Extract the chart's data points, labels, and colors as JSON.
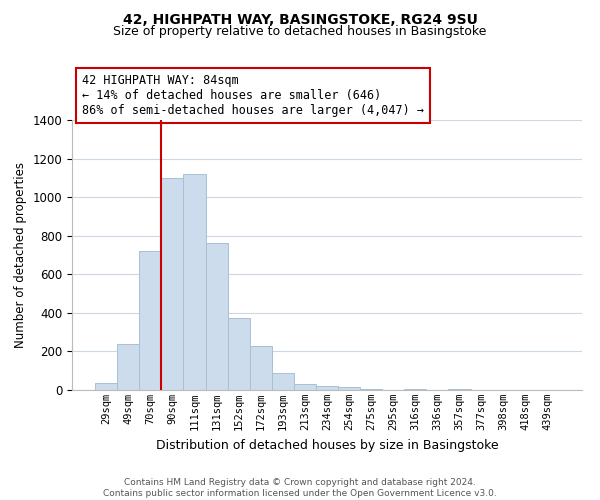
{
  "title": "42, HIGHPATH WAY, BASINGSTOKE, RG24 9SU",
  "subtitle": "Size of property relative to detached houses in Basingstoke",
  "xlabel": "Distribution of detached houses by size in Basingstoke",
  "ylabel": "Number of detached properties",
  "bin_labels": [
    "29sqm",
    "49sqm",
    "70sqm",
    "90sqm",
    "111sqm",
    "131sqm",
    "152sqm",
    "172sqm",
    "193sqm",
    "213sqm",
    "234sqm",
    "254sqm",
    "275sqm",
    "295sqm",
    "316sqm",
    "336sqm",
    "357sqm",
    "377sqm",
    "398sqm",
    "418sqm",
    "439sqm"
  ],
  "bar_heights": [
    35,
    240,
    720,
    1100,
    1120,
    760,
    375,
    230,
    90,
    30,
    20,
    15,
    5,
    0,
    5,
    0,
    5,
    0,
    0,
    0,
    0
  ],
  "bar_color": "#ccdcec",
  "bar_edge_color": "#a8c0d4",
  "vline_color": "#cc0000",
  "vline_x_index": 3,
  "ylim": [
    0,
    1400
  ],
  "yticks": [
    0,
    200,
    400,
    600,
    800,
    1000,
    1200,
    1400
  ],
  "annotation_title": "42 HIGHPATH WAY: 84sqm",
  "annotation_line1": "← 14% of detached houses are smaller (646)",
  "annotation_line2": "86% of semi-detached houses are larger (4,047) →",
  "annotation_box_color": "#ffffff",
  "annotation_box_edge": "#cc0000",
  "footer_line1": "Contains HM Land Registry data © Crown copyright and database right 2024.",
  "footer_line2": "Contains public sector information licensed under the Open Government Licence v3.0.",
  "background_color": "#ffffff",
  "grid_color": "#ccd8e4"
}
